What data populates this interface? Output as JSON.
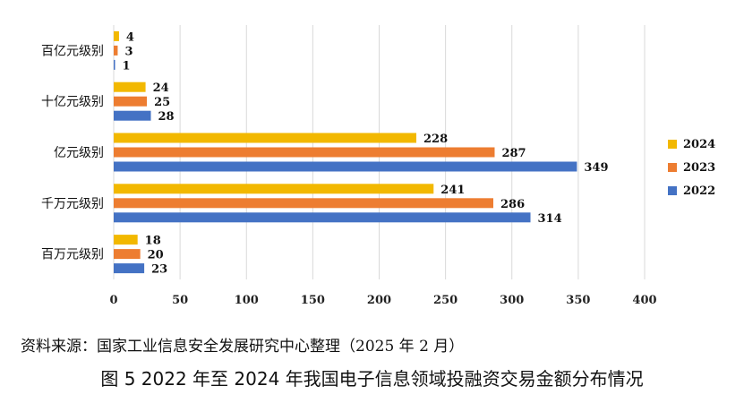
{
  "chart_data": {
    "type": "bar",
    "orientation": "horizontal",
    "categories": [
      "百亿元级别",
      "十亿元级别",
      "亿元级别",
      "千万元级别",
      "百万元级别"
    ],
    "series": [
      {
        "name": "2024",
        "color": "#F2B800",
        "values": [
          4,
          24,
          228,
          241,
          18
        ]
      },
      {
        "name": "2023",
        "color": "#ED7D31",
        "values": [
          3,
          25,
          287,
          286,
          20
        ]
      },
      {
        "name": "2022",
        "color": "#4472C4",
        "values": [
          1,
          28,
          349,
          314,
          23
        ]
      }
    ],
    "xlim": [
      0,
      400
    ],
    "xticks": [
      0,
      50,
      100,
      150,
      200,
      250,
      300,
      350,
      400
    ],
    "grid": "vertical",
    "legend_position": "right"
  },
  "source_note": "资料来源：国家工业信息安全发展研究中心整理（2025 年 2 月）",
  "caption": "图 5 2022 年至 2024 年我国电子信息领域投融资交易金额分布情况"
}
